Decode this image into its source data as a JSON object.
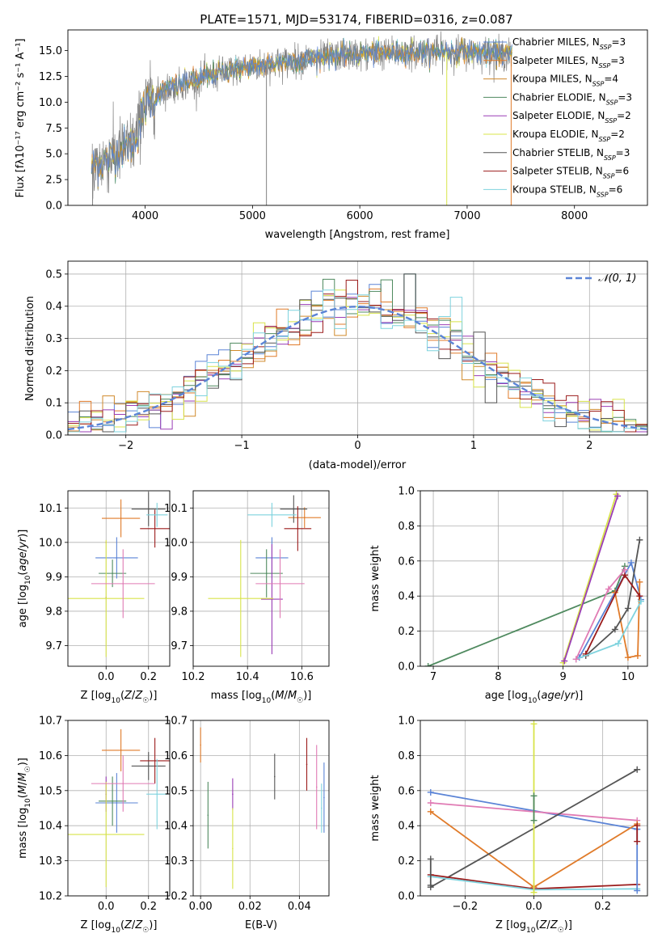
{
  "title": "PLATE=1571, MJD=53174, FIBERID=0316, z=0.087",
  "colors": {
    "chabrier_miles": "#5b84d6",
    "salpeter_miles": "#e07b2a",
    "kroupa_miles": "#d08a2c",
    "chabrier_elodie": "#4f8a5f",
    "salpeter_elodie": "#9a3db5",
    "kroupa_elodie": "#d8e44a",
    "chabrier_stelib": "#555555",
    "salpeter_stelib": "#9b1c1c",
    "kroupa_stelib": "#7fd3de",
    "pink": "#e07bb4",
    "gaussian": "#5b84d6",
    "flux_data": "#808080"
  },
  "chart_data": [
    {
      "id": "spectrum",
      "type": "line",
      "title": "PLATE=1571, MJD=53174, FIBERID=0316, z=0.087",
      "xlabel": "wavelength [Angstrom, rest frame]",
      "ylabel": "Flux [fλ10⁻¹⁷ erg cm⁻² s⁻¹ A⁻¹]",
      "xlim": [
        3280,
        8680
      ],
      "ylim": [
        0,
        17
      ],
      "xticks": [
        4000,
        5000,
        6000,
        7000,
        8000
      ],
      "yticks": [
        0.0,
        2.5,
        5.0,
        7.5,
        10.0,
        12.5,
        15.0
      ],
      "ytick_labels": [
        "0.0",
        "2.5",
        "5.0",
        "7.5",
        "10.0",
        "12.5",
        "15.0"
      ],
      "legend_position": "right",
      "legend": [
        "Chabrier MILES, N_SSP=3",
        "Salpeter MILES, N_SSP=3",
        "Kroupa MILES, N_SSP=4",
        "Chabrier ELODIE, N_SSP=3",
        "Salpeter ELODIE, N_SSP=2",
        "Kroupa ELODIE, N_SSP=2",
        "Chabrier STELIB, N_SSP=3",
        "Salpeter STELIB, N_SSP=6",
        "Kroupa STELIB, N_SSP=6"
      ],
      "continuum_shape": {
        "x": [
          3500,
          3700,
          3900,
          4000,
          4200,
          4500,
          4800,
          5000,
          5300,
          5600,
          5900,
          6200,
          6600,
          7000,
          7400
        ],
        "y": [
          3.6,
          4.8,
          6.2,
          9.8,
          11.3,
          12.2,
          13.1,
          13.4,
          13.9,
          14.3,
          14.6,
          14.7,
          14.9,
          14.9,
          14.6
        ]
      },
      "grid": false
    },
    {
      "id": "residuals",
      "type": "line",
      "xlabel": "(data-model)/error",
      "ylabel": "Normed distribution",
      "xlim": [
        -2.5,
        2.5
      ],
      "ylim": [
        0,
        0.54
      ],
      "xticks": [
        -2,
        -1,
        0,
        1,
        2
      ],
      "xtick_labels": [
        "−2",
        "−1",
        "0",
        "1",
        "2"
      ],
      "yticks": [
        0.0,
        0.1,
        0.2,
        0.3,
        0.4,
        0.5
      ],
      "ytick_labels": [
        "0.0",
        "0.1",
        "0.2",
        "0.3",
        "0.4",
        "0.5"
      ],
      "legend_position": "top-right",
      "gaussian_label": "𝒩(0, 1)",
      "grid": true
    },
    {
      "id": "age-vs-Z",
      "type": "scatter",
      "xlabel": "Z [log10(Z/Z☉)]",
      "ylabel": "age  [log10(age/yr)]",
      "xlim": [
        -0.18,
        0.3
      ],
      "ylim": [
        9.64,
        10.15
      ],
      "xticks": [
        0.0,
        0.2
      ],
      "xtick_labels": [
        "0.0",
        "0.2"
      ],
      "yticks": [
        9.7,
        9.8,
        9.9,
        10.0,
        10.1
      ],
      "ytick_labels": [
        "9.7",
        "9.8",
        "9.9",
        "10.0",
        "10.1"
      ],
      "grid": true,
      "points": [
        {
          "c": "chabrier_miles",
          "x": 0.05,
          "xe": 0.1,
          "y": 9.955,
          "ye": 0.06
        },
        {
          "c": "salpeter_miles",
          "x": 0.07,
          "xe": 0.09,
          "y": 10.07,
          "ye": 0.055
        },
        {
          "c": "kroupa_miles",
          "x": 0.0,
          "xe": 0.0,
          "y": 10.0,
          "ye": 0.0
        },
        {
          "c": "chabrier_elodie",
          "x": 0.03,
          "xe": 0.065,
          "y": 9.91,
          "ye": 0.04
        },
        {
          "c": "salpeter_elodie",
          "x": 0.0,
          "xe": 0.0,
          "y": 9.84,
          "ye": 0.0
        },
        {
          "c": "kroupa_elodie",
          "x": 0.0,
          "xe": 0.18,
          "y": 9.837,
          "ye": 0.17
        },
        {
          "c": "chabrier_stelib",
          "x": 0.2,
          "xe": 0.08,
          "y": 10.097,
          "ye": 0.05
        },
        {
          "c": "salpeter_stelib",
          "x": 0.23,
          "xe": 0.07,
          "y": 10.04,
          "ye": 0.055
        },
        {
          "c": "kroupa_stelib",
          "x": 0.24,
          "xe": 0.05,
          "y": 10.08,
          "ye": 0.035
        },
        {
          "c": "pink",
          "x": 0.08,
          "xe": 0.15,
          "y": 9.88,
          "ye": 0.1
        }
      ]
    },
    {
      "id": "age-vs-mass",
      "type": "scatter",
      "xlabel": "mass [log10(M/M☉)]",
      "xlim": [
        10.2,
        10.7
      ],
      "ylim": [
        9.64,
        10.15
      ],
      "xticks": [
        10.2,
        10.4,
        10.6
      ],
      "xtick_labels": [
        "10.2",
        "10.4",
        "10.6"
      ],
      "yticks": [
        9.7,
        9.8,
        9.9,
        10.0,
        10.1
      ],
      "ytick_labels": [
        "9.7",
        "9.8",
        "9.9",
        "10.0",
        "10.1"
      ],
      "grid": true,
      "points": [
        {
          "c": "chabrier_miles",
          "x": 10.49,
          "xe": 0.06,
          "y": 9.955,
          "ye": 0.06
        },
        {
          "c": "salpeter_miles",
          "x": 10.61,
          "xe": 0.06,
          "y": 10.072,
          "ye": 0.03
        },
        {
          "c": "chabrier_elodie",
          "x": 10.47,
          "xe": 0.06,
          "y": 9.91,
          "ye": 0.07
        },
        {
          "c": "salpeter_elodie",
          "x": 10.49,
          "xe": 0.04,
          "y": 9.835,
          "ye": 0.16
        },
        {
          "c": "kroupa_elodie",
          "x": 10.375,
          "xe": 0.12,
          "y": 9.837,
          "ye": 0.17
        },
        {
          "c": "chabrier_stelib",
          "x": 10.57,
          "xe": 0.05,
          "y": 10.097,
          "ye": 0.04
        },
        {
          "c": "salpeter_stelib",
          "x": 10.585,
          "xe": 0.05,
          "y": 10.04,
          "ye": 0.065
        },
        {
          "c": "kroupa_stelib",
          "x": 10.49,
          "xe": 0.09,
          "y": 10.08,
          "ye": 0.035
        },
        {
          "c": "pink",
          "x": 10.52,
          "xe": 0.09,
          "y": 9.88,
          "ye": 0.1
        }
      ]
    },
    {
      "id": "massweight-vs-age",
      "type": "line",
      "xlabel": "age  [log10(age/yr)]",
      "ylabel": "mass weight",
      "xlim": [
        6.8,
        10.3
      ],
      "ylim": [
        0,
        1.0
      ],
      "xticks": [
        7,
        8,
        9,
        10
      ],
      "xtick_labels": [
        "7",
        "8",
        "9",
        "10"
      ],
      "yticks": [
        0.0,
        0.2,
        0.4,
        0.6,
        0.8,
        1.0
      ],
      "ytick_labels": [
        "0.0",
        "0.2",
        "0.4",
        "0.6",
        "0.8",
        "1.0"
      ],
      "grid": true,
      "series": [
        {
          "c": "chabrier_elodie",
          "x": [
            6.92,
            9.8,
            9.95
          ],
          "y": [
            0.0,
            0.43,
            0.57
          ]
        },
        {
          "c": "kroupa_elodie",
          "x": [
            9.0,
            9.82
          ],
          "y": [
            0.02,
            0.98
          ]
        },
        {
          "c": "salpeter_elodie",
          "x": [
            9.02,
            9.84
          ],
          "y": [
            0.03,
            0.97
          ]
        },
        {
          "c": "chabrier_miles",
          "x": [
            9.25,
            10.05,
            10.2
          ],
          "y": [
            0.05,
            0.59,
            0.38
          ]
        },
        {
          "c": "salpeter_miles",
          "x": [
            9.8,
            10.0,
            10.15,
            10.18
          ],
          "y": [
            0.42,
            0.05,
            0.06,
            0.48
          ]
        },
        {
          "c": "chabrier_stelib",
          "x": [
            9.35,
            9.8,
            10.0,
            10.18
          ],
          "y": [
            0.06,
            0.21,
            0.33,
            0.72
          ]
        },
        {
          "c": "salpeter_stelib",
          "x": [
            9.35,
            9.95,
            10.18
          ],
          "y": [
            0.07,
            0.52,
            0.4
          ]
        },
        {
          "c": "kroupa_stelib",
          "x": [
            9.2,
            9.85,
            10.2
          ],
          "y": [
            0.04,
            0.13,
            0.37
          ]
        },
        {
          "c": "pink",
          "x": [
            9.2,
            9.7,
            9.95
          ],
          "y": [
            0.04,
            0.44,
            0.55
          ]
        }
      ]
    },
    {
      "id": "mass-vs-Z",
      "type": "scatter",
      "xlabel": "Z [log10(Z/Z☉)]",
      "ylabel": "mass [log10(M/M☉)]",
      "xlim": [
        -0.18,
        0.3
      ],
      "ylim": [
        10.2,
        10.7
      ],
      "xticks": [
        0.0,
        0.2
      ],
      "xtick_labels": [
        "0.0",
        "0.2"
      ],
      "yticks": [
        10.2,
        10.3,
        10.4,
        10.5,
        10.6,
        10.7
      ],
      "ytick_labels": [
        "10.2",
        "10.3",
        "10.4",
        "10.5",
        "10.6",
        "10.7"
      ],
      "grid": true,
      "points": [
        {
          "c": "chabrier_miles",
          "x": 0.05,
          "xe": 0.1,
          "y": 10.465,
          "ye": 0.085
        },
        {
          "c": "salpeter_miles",
          "x": 0.07,
          "xe": 0.09,
          "y": 10.615,
          "ye": 0.06
        },
        {
          "c": "chabrier_elodie",
          "x": 0.03,
          "xe": 0.065,
          "y": 10.47,
          "ye": 0.07
        },
        {
          "c": "salpeter_elodie",
          "x": 0.0,
          "xe": 0.0,
          "y": 10.49,
          "ye": 0.05
        },
        {
          "c": "kroupa_elodie",
          "x": 0.0,
          "xe": 0.18,
          "y": 10.375,
          "ye": 0.15
        },
        {
          "c": "chabrier_stelib",
          "x": 0.2,
          "xe": 0.08,
          "y": 10.57,
          "ye": 0.04
        },
        {
          "c": "salpeter_stelib",
          "x": 0.23,
          "xe": 0.07,
          "y": 10.585,
          "ye": 0.065
        },
        {
          "c": "kroupa_stelib",
          "x": 0.24,
          "xe": 0.05,
          "y": 10.49,
          "ye": 0.1
        },
        {
          "c": "pink",
          "x": 0.08,
          "xe": 0.15,
          "y": 10.52,
          "ye": 0.08
        }
      ]
    },
    {
      "id": "mass-vs-EBV",
      "type": "scatter",
      "xlabel": "E(B-V)",
      "xlim": [
        -0.003,
        0.052
      ],
      "ylim": [
        10.2,
        10.7
      ],
      "xticks": [
        0.0,
        0.02,
        0.04
      ],
      "xtick_labels": [
        "0.00",
        "0.02",
        "0.04"
      ],
      "yticks": [
        10.2,
        10.3,
        10.4,
        10.5,
        10.6,
        10.7
      ],
      "ytick_labels": [
        "10.2",
        "10.3",
        "10.4",
        "10.5",
        "10.6",
        "10.7"
      ],
      "grid": true,
      "points": [
        {
          "c": "salpeter_miles",
          "x": 0.0,
          "xe": 0.0,
          "y": 10.63,
          "ye": 0.05
        },
        {
          "c": "chabrier_elodie",
          "x": 0.003,
          "xe": 0.0,
          "y": 10.43,
          "ye": 0.095
        },
        {
          "c": "salpeter_elodie",
          "x": 0.013,
          "xe": 0.0,
          "y": 10.49,
          "ye": 0.045
        },
        {
          "c": "kroupa_elodie",
          "x": 0.013,
          "xe": 0.0,
          "y": 10.335,
          "ye": 0.115
        },
        {
          "c": "chabrier_stelib",
          "x": 0.03,
          "xe": 0.0,
          "y": 10.54,
          "ye": 0.065
        },
        {
          "c": "salpeter_stelib",
          "x": 0.043,
          "xe": 0.0,
          "y": 10.575,
          "ye": 0.075
        },
        {
          "c": "pink",
          "x": 0.047,
          "xe": 0.0,
          "y": 10.51,
          "ye": 0.12
        },
        {
          "c": "chabrier_miles",
          "x": 0.05,
          "xe": 0.0,
          "y": 10.48,
          "ye": 0.1
        },
        {
          "c": "kroupa_stelib",
          "x": 0.049,
          "xe": 0.0,
          "y": 10.45,
          "ye": 0.07
        }
      ]
    },
    {
      "id": "massweight-vs-Z",
      "type": "line",
      "xlabel": "Z [log10(Z/Z☉)]",
      "ylabel": "mass weight",
      "xlim": [
        -0.33,
        0.33
      ],
      "ylim": [
        0,
        1.0
      ],
      "xticks": [
        -0.2,
        0.0,
        0.2
      ],
      "xtick_labels": [
        "−0.2",
        "0.0",
        "0.2"
      ],
      "yticks": [
        0.0,
        0.2,
        0.4,
        0.6,
        0.8,
        1.0
      ],
      "ytick_labels": [
        "0.0",
        "0.2",
        "0.4",
        "0.6",
        "0.8",
        "1.0"
      ],
      "grid": true,
      "series": [
        {
          "c": "chabrier_miles",
          "x": [
            -0.3,
            0.3
          ],
          "y": [
            0.59,
            0.38
          ]
        },
        {
          "c": "pink",
          "x": [
            -0.3,
            0.3
          ],
          "y": [
            0.53,
            0.43
          ]
        },
        {
          "c": "salpeter_miles",
          "x": [
            -0.3,
            0.0,
            0.3
          ],
          "y": [
            0.48,
            0.05,
            0.41
          ]
        },
        {
          "c": "chabrier_stelib",
          "x": [
            -0.3,
            0.3
          ],
          "y": [
            0.05,
            0.72
          ]
        },
        {
          "c": "salpeter_stelib",
          "x": [
            -0.3,
            0.0,
            0.3
          ],
          "y": [
            0.12,
            0.04,
            0.065
          ]
        },
        {
          "c": "kroupa_stelib",
          "x": [
            -0.3,
            0.0,
            0.3
          ],
          "y": [
            0.11,
            0.035,
            0.04
          ]
        },
        {
          "c": "kroupa_elodie",
          "x": [
            0.0,
            0.0
          ],
          "y": [
            0.98,
            0.02
          ]
        },
        {
          "c": "chabrier_elodie",
          "x": [
            0.0,
            0.0
          ],
          "y": [
            0.57,
            0.43
          ]
        },
        {
          "c": "chabrier_stelib",
          "x": [
            -0.3,
            -0.3
          ],
          "y": [
            0.21,
            0.06
          ]
        },
        {
          "c": "chabrier_miles",
          "x": [
            0.3,
            0.3
          ],
          "y": [
            0.38,
            0.03
          ]
        },
        {
          "c": "salpeter_stelib",
          "x": [
            0.3,
            0.3
          ],
          "y": [
            0.4,
            0.31
          ]
        }
      ]
    }
  ]
}
